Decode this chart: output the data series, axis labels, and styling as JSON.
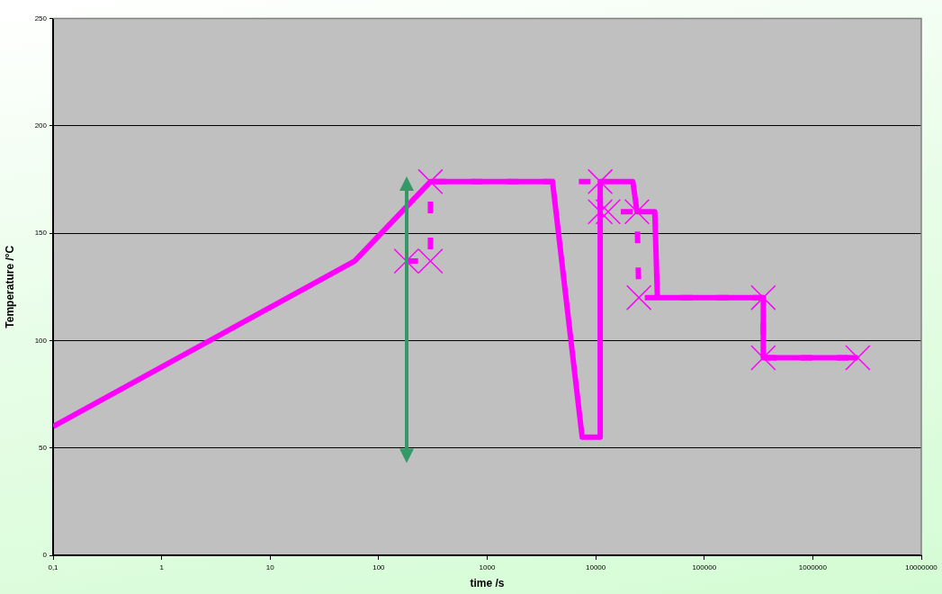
{
  "chart_data": {
    "type": "line",
    "xlabel": "time /s",
    "ylabel": "Temperature /°C",
    "log": "x",
    "xlim": [
      0.1,
      10000000
    ],
    "xticks": [
      {
        "value": 0.1,
        "label": "0,1"
      },
      1,
      10,
      100,
      1000,
      10000,
      100000,
      1000000,
      10000000
    ],
    "ylim": [
      0,
      250
    ],
    "yticks": [
      0,
      50,
      100,
      150,
      200,
      250
    ],
    "grid": "y",
    "series": [
      {
        "color": "#ff00ff",
        "marker": "none",
        "line_style": "solid",
        "x": [
          0.1,
          60,
          300,
          4000,
          7500,
          11000,
          11000,
          22000,
          24000,
          35000,
          37000,
          350000,
          350000,
          2600000
        ],
        "values": [
          60,
          137,
          174,
          174,
          55,
          55,
          174,
          174,
          160,
          160,
          120,
          120,
          92,
          92
        ]
      },
      {
        "color": "#ff00ff",
        "marker": "cross",
        "line_style": "dashed",
        "x": [
          180,
          300,
          300,
          11000,
          11000,
          13000,
          24000,
          25000,
          350000,
          350000,
          2600000
        ],
        "values": [
          137,
          137,
          174,
          174,
          160,
          160,
          160,
          120,
          120,
          92,
          92
        ]
      }
    ]
  }
}
